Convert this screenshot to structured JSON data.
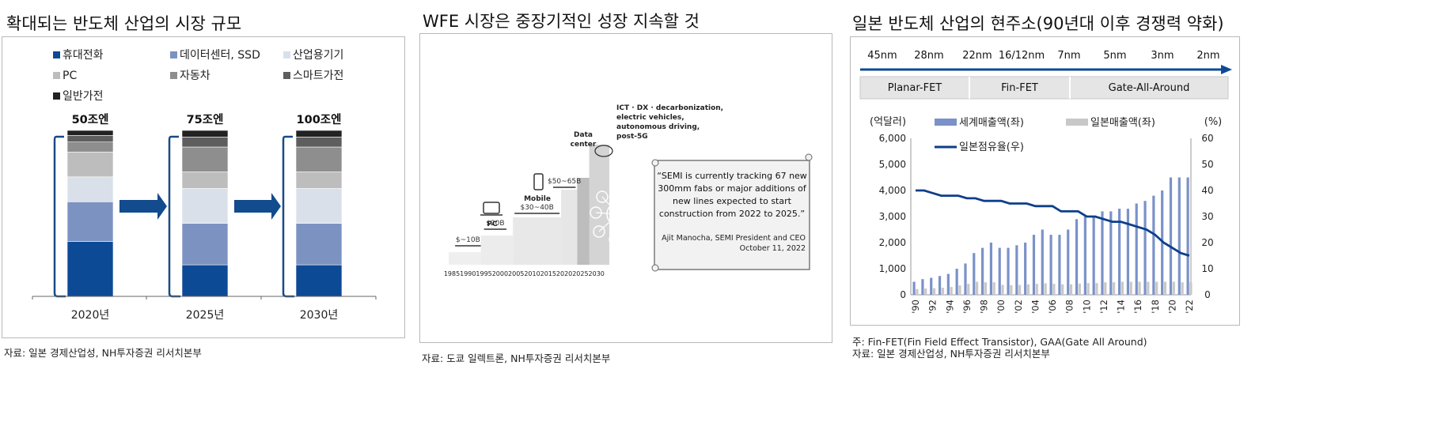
{
  "panel1": {
    "title": "확대되는 반도체 산업의 시장 규모",
    "source": "자료: 일본 경제산업성, NH투자증권 리서치본부",
    "legend": [
      {
        "label": "휴대전화",
        "color": "#0d4a96"
      },
      {
        "label": "데이터센터, SSD",
        "color": "#7c93c2"
      },
      {
        "label": "산업용기기",
        "color": "#d9e0ea"
      },
      {
        "label": "PC",
        "color": "#bdbdbd"
      },
      {
        "label": "자동차",
        "color": "#8e8e8e"
      },
      {
        "label": "스마트가전",
        "color": "#5e5e5e"
      },
      {
        "label": "일반가전",
        "color": "#222222"
      }
    ],
    "chart_data": {
      "type": "bar",
      "stacked": true,
      "categories": [
        "2020년",
        "2025년",
        "2030년"
      ],
      "totals": [
        "50조엔",
        "75조엔",
        "100조엔"
      ],
      "series": [
        {
          "name": "휴대전화",
          "values": [
            33,
            19,
            19
          ]
        },
        {
          "name": "데이터센터, SSD",
          "values": [
            24,
            25,
            25
          ]
        },
        {
          "name": "산업용기기",
          "values": [
            15,
            21,
            21
          ]
        },
        {
          "name": "PC",
          "values": [
            15,
            10,
            10
          ]
        },
        {
          "name": "자동차",
          "values": [
            6,
            15,
            15
          ]
        },
        {
          "name": "스마트가전",
          "values": [
            4,
            6,
            6
          ]
        },
        {
          "name": "일반가전",
          "values": [
            3,
            4,
            4
          ]
        }
      ]
    }
  },
  "panel2": {
    "title": "WFE 시장은 중장기적인 성장 지속할 것",
    "source": "자료: 도쿄 일렉트론, NH투자증권 리서치본부",
    "quote": "“SEMI is currently tracking 67 new 300mm fabs or major additions of new lines expected to start construction from 2022 to 2025.”",
    "quote_lines": [
      "“SEMI is currently tracking 67 new",
      "300mm fabs or major additions of",
      "new lines expected to start",
      "construction from 2022 to 2025.”"
    ],
    "attribution": [
      "Ajit Manocha, SEMI President and CEO",
      "October 11, 2022"
    ],
    "x_ticks": [
      "1985",
      "1990",
      "1995",
      "2000",
      "2005",
      "2010",
      "2015",
      "2020",
      "2025",
      "2030"
    ],
    "stages": [
      {
        "era": "",
        "size": "$~10B"
      },
      {
        "era": "PC",
        "size": "$20B"
      },
      {
        "era": "Mobile",
        "size": "$30~40B"
      },
      {
        "era": "Data center",
        "size": "$50~65B"
      },
      {
        "era": "ICT · DX · decarbonization, electric vehicles, autonomous driving, post-5G",
        "size": ""
      }
    ],
    "stage_label_lines": {
      "data_center": [
        "Data",
        "center"
      ],
      "ict": [
        "ICT · DX · decarbonization,",
        "electric vehicles,",
        "autonomous driving,",
        "post-5G"
      ]
    }
  },
  "panel3": {
    "title": "일본 반도체 산업의 현주소(90년대 이후 경쟁력 약화)",
    "note": "주: Fin-FET(Fin Field Effect Transistor), GAA(Gate All Around)",
    "source": "자료: 일본 경제산업성, NH투자증권 리서치본부",
    "nodes": [
      "45nm",
      "28nm",
      "22nm",
      "16/12nm",
      "7nm",
      "5nm",
      "3nm",
      "2nm"
    ],
    "architectures": [
      "Planar-FET",
      "Fin-FET",
      "Gate-All-Around"
    ],
    "left_unit": "(억달러)",
    "right_unit": "(%)",
    "legend": [
      {
        "label": "세계매출액(좌)",
        "color": "#7a92c8"
      },
      {
        "label": "일본매출액(좌)",
        "color": "#c8c8c8"
      },
      {
        "label": "일본점유율(우)",
        "color": "#0d3f8a"
      }
    ],
    "chart_data": {
      "type": "bar",
      "x": [
        "'90",
        "'91",
        "'92",
        "'93",
        "'94",
        "'95",
        "'96",
        "'97",
        "'98",
        "'99",
        "'00",
        "'01",
        "'02",
        "'03",
        "'04",
        "'05",
        "'06",
        "'07",
        "'08",
        "'09",
        "'10",
        "'11",
        "'12",
        "'13",
        "'14",
        "'15",
        "'16",
        "'17",
        "'18",
        "'19",
        "'20",
        "'21",
        "'22"
      ],
      "x_tick_labels": [
        "'90",
        "'92",
        "'94",
        "'96",
        "'98",
        "'00",
        "'02",
        "'04",
        "'06",
        "'08",
        "'10",
        "'12",
        "'14",
        "'16",
        "'18",
        "'20",
        "'22"
      ],
      "ylim_left": [
        0,
        6000
      ],
      "ylim_right": [
        0,
        60
      ],
      "y_ticks_left": [
        "0",
        "1,000",
        "2,000",
        "3,000",
        "4,000",
        "5,000",
        "6,000"
      ],
      "y_ticks_right": [
        "0",
        "10",
        "20",
        "30",
        "40",
        "50",
        "60"
      ],
      "series": [
        {
          "name": "세계매출액(좌)",
          "axis": "left",
          "type": "bar",
          "values": [
            500,
            600,
            650,
            720,
            800,
            1000,
            1200,
            1600,
            1800,
            2000,
            1800,
            1800,
            1900,
            2000,
            2300,
            2500,
            2300,
            2300,
            2500,
            2900,
            3000,
            3000,
            3200,
            3200,
            3300,
            3300,
            3500,
            3600,
            3800,
            4000,
            4500,
            4500,
            4500
          ]
        },
        {
          "name": "일본매출액(좌)",
          "axis": "left",
          "type": "bar",
          "values": [
            220,
            240,
            250,
            270,
            300,
            360,
            420,
            500,
            480,
            480,
            380,
            370,
            380,
            400,
            420,
            440,
            420,
            400,
            400,
            430,
            450,
            450,
            480,
            480,
            500,
            500,
            500,
            500,
            500,
            500,
            500,
            480,
            480
          ]
        },
        {
          "name": "일본점유율(우)",
          "axis": "right",
          "type": "line",
          "values": [
            40,
            40,
            39,
            38,
            38,
            38,
            37,
            37,
            36,
            36,
            36,
            35,
            35,
            35,
            34,
            34,
            34,
            32,
            32,
            32,
            30,
            30,
            29,
            28,
            28,
            27,
            26,
            25,
            23,
            20,
            18,
            16,
            15
          ]
        }
      ]
    }
  }
}
